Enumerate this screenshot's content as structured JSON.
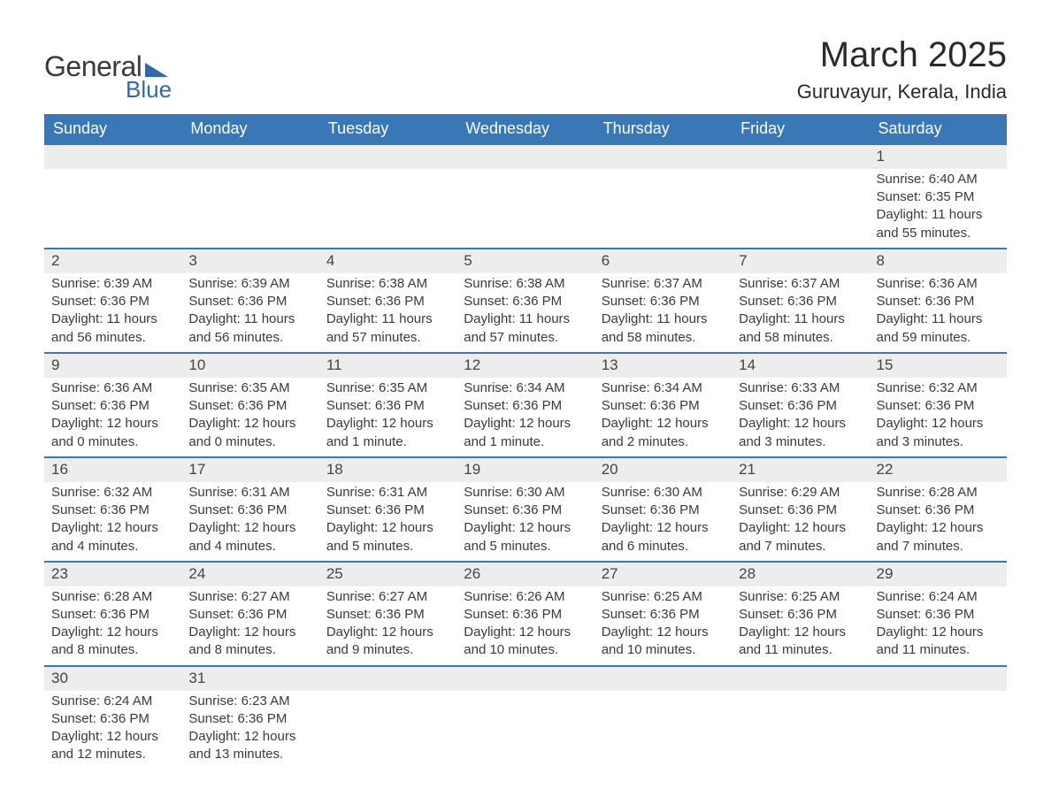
{
  "logo": {
    "text1": "General",
    "text2": "Blue",
    "accent_color": "#2f6aad"
  },
  "title": "March 2025",
  "location": "Guruvayur, Kerala, India",
  "colors": {
    "header_bg": "#3a77b7",
    "header_text": "#ffffff",
    "daynum_bg": "#ededed",
    "row_divider": "#3a77b7",
    "body_text": "#3a3a3a"
  },
  "day_headers": [
    "Sunday",
    "Monday",
    "Tuesday",
    "Wednesday",
    "Thursday",
    "Friday",
    "Saturday"
  ],
  "weeks": [
    [
      null,
      null,
      null,
      null,
      null,
      null,
      {
        "n": "1",
        "sr": "Sunrise: 6:40 AM",
        "ss": "Sunset: 6:35 PM",
        "d1": "Daylight: 11 hours",
        "d2": "and 55 minutes."
      }
    ],
    [
      {
        "n": "2",
        "sr": "Sunrise: 6:39 AM",
        "ss": "Sunset: 6:36 PM",
        "d1": "Daylight: 11 hours",
        "d2": "and 56 minutes."
      },
      {
        "n": "3",
        "sr": "Sunrise: 6:39 AM",
        "ss": "Sunset: 6:36 PM",
        "d1": "Daylight: 11 hours",
        "d2": "and 56 minutes."
      },
      {
        "n": "4",
        "sr": "Sunrise: 6:38 AM",
        "ss": "Sunset: 6:36 PM",
        "d1": "Daylight: 11 hours",
        "d2": "and 57 minutes."
      },
      {
        "n": "5",
        "sr": "Sunrise: 6:38 AM",
        "ss": "Sunset: 6:36 PM",
        "d1": "Daylight: 11 hours",
        "d2": "and 57 minutes."
      },
      {
        "n": "6",
        "sr": "Sunrise: 6:37 AM",
        "ss": "Sunset: 6:36 PM",
        "d1": "Daylight: 11 hours",
        "d2": "and 58 minutes."
      },
      {
        "n": "7",
        "sr": "Sunrise: 6:37 AM",
        "ss": "Sunset: 6:36 PM",
        "d1": "Daylight: 11 hours",
        "d2": "and 58 minutes."
      },
      {
        "n": "8",
        "sr": "Sunrise: 6:36 AM",
        "ss": "Sunset: 6:36 PM",
        "d1": "Daylight: 11 hours",
        "d2": "and 59 minutes."
      }
    ],
    [
      {
        "n": "9",
        "sr": "Sunrise: 6:36 AM",
        "ss": "Sunset: 6:36 PM",
        "d1": "Daylight: 12 hours",
        "d2": "and 0 minutes."
      },
      {
        "n": "10",
        "sr": "Sunrise: 6:35 AM",
        "ss": "Sunset: 6:36 PM",
        "d1": "Daylight: 12 hours",
        "d2": "and 0 minutes."
      },
      {
        "n": "11",
        "sr": "Sunrise: 6:35 AM",
        "ss": "Sunset: 6:36 PM",
        "d1": "Daylight: 12 hours",
        "d2": "and 1 minute."
      },
      {
        "n": "12",
        "sr": "Sunrise: 6:34 AM",
        "ss": "Sunset: 6:36 PM",
        "d1": "Daylight: 12 hours",
        "d2": "and 1 minute."
      },
      {
        "n": "13",
        "sr": "Sunrise: 6:34 AM",
        "ss": "Sunset: 6:36 PM",
        "d1": "Daylight: 12 hours",
        "d2": "and 2 minutes."
      },
      {
        "n": "14",
        "sr": "Sunrise: 6:33 AM",
        "ss": "Sunset: 6:36 PM",
        "d1": "Daylight: 12 hours",
        "d2": "and 3 minutes."
      },
      {
        "n": "15",
        "sr": "Sunrise: 6:32 AM",
        "ss": "Sunset: 6:36 PM",
        "d1": "Daylight: 12 hours",
        "d2": "and 3 minutes."
      }
    ],
    [
      {
        "n": "16",
        "sr": "Sunrise: 6:32 AM",
        "ss": "Sunset: 6:36 PM",
        "d1": "Daylight: 12 hours",
        "d2": "and 4 minutes."
      },
      {
        "n": "17",
        "sr": "Sunrise: 6:31 AM",
        "ss": "Sunset: 6:36 PM",
        "d1": "Daylight: 12 hours",
        "d2": "and 4 minutes."
      },
      {
        "n": "18",
        "sr": "Sunrise: 6:31 AM",
        "ss": "Sunset: 6:36 PM",
        "d1": "Daylight: 12 hours",
        "d2": "and 5 minutes."
      },
      {
        "n": "19",
        "sr": "Sunrise: 6:30 AM",
        "ss": "Sunset: 6:36 PM",
        "d1": "Daylight: 12 hours",
        "d2": "and 5 minutes."
      },
      {
        "n": "20",
        "sr": "Sunrise: 6:30 AM",
        "ss": "Sunset: 6:36 PM",
        "d1": "Daylight: 12 hours",
        "d2": "and 6 minutes."
      },
      {
        "n": "21",
        "sr": "Sunrise: 6:29 AM",
        "ss": "Sunset: 6:36 PM",
        "d1": "Daylight: 12 hours",
        "d2": "and 7 minutes."
      },
      {
        "n": "22",
        "sr": "Sunrise: 6:28 AM",
        "ss": "Sunset: 6:36 PM",
        "d1": "Daylight: 12 hours",
        "d2": "and 7 minutes."
      }
    ],
    [
      {
        "n": "23",
        "sr": "Sunrise: 6:28 AM",
        "ss": "Sunset: 6:36 PM",
        "d1": "Daylight: 12 hours",
        "d2": "and 8 minutes."
      },
      {
        "n": "24",
        "sr": "Sunrise: 6:27 AM",
        "ss": "Sunset: 6:36 PM",
        "d1": "Daylight: 12 hours",
        "d2": "and 8 minutes."
      },
      {
        "n": "25",
        "sr": "Sunrise: 6:27 AM",
        "ss": "Sunset: 6:36 PM",
        "d1": "Daylight: 12 hours",
        "d2": "and 9 minutes."
      },
      {
        "n": "26",
        "sr": "Sunrise: 6:26 AM",
        "ss": "Sunset: 6:36 PM",
        "d1": "Daylight: 12 hours",
        "d2": "and 10 minutes."
      },
      {
        "n": "27",
        "sr": "Sunrise: 6:25 AM",
        "ss": "Sunset: 6:36 PM",
        "d1": "Daylight: 12 hours",
        "d2": "and 10 minutes."
      },
      {
        "n": "28",
        "sr": "Sunrise: 6:25 AM",
        "ss": "Sunset: 6:36 PM",
        "d1": "Daylight: 12 hours",
        "d2": "and 11 minutes."
      },
      {
        "n": "29",
        "sr": "Sunrise: 6:24 AM",
        "ss": "Sunset: 6:36 PM",
        "d1": "Daylight: 12 hours",
        "d2": "and 11 minutes."
      }
    ],
    [
      {
        "n": "30",
        "sr": "Sunrise: 6:24 AM",
        "ss": "Sunset: 6:36 PM",
        "d1": "Daylight: 12 hours",
        "d2": "and 12 minutes."
      },
      {
        "n": "31",
        "sr": "Sunrise: 6:23 AM",
        "ss": "Sunset: 6:36 PM",
        "d1": "Daylight: 12 hours",
        "d2": "and 13 minutes."
      },
      null,
      null,
      null,
      null,
      null
    ]
  ]
}
